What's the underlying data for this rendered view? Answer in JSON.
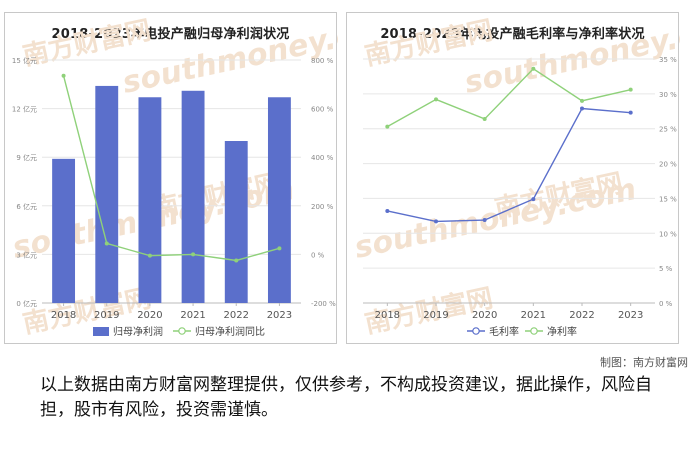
{
  "credit": "制图：南方财富网",
  "disclaimer": "以上数据由南方财富网整理提供，仅供参考，不构成投资建议，据此操作，风险自担，股市有风险，投资需谨慎。",
  "watermark": {
    "cn": "南方财富网",
    "en": "southmoney.com"
  },
  "colors": {
    "bar": "#5b6fcb",
    "growth_line": "#8fd17a",
    "gross_line": "#5b6fcb",
    "net_line": "#8fd17a"
  },
  "chart_data": [
    {
      "type": "bar",
      "title": "2018-2023年电投产融归母净利润状况",
      "categories": [
        "2018",
        "2019",
        "2020",
        "2021",
        "2022",
        "2023"
      ],
      "y_ticks": [
        "0 亿元",
        "3 亿元",
        "6 亿元",
        "9 亿元",
        "12 亿元",
        "15 亿元"
      ],
      "y2_ticks": [
        "-200 %",
        "0 %",
        "200 %",
        "400 %",
        "600 %",
        "800 %"
      ],
      "ylim": [
        0,
        15
      ],
      "y2lim": [
        -200,
        800
      ],
      "series": [
        {
          "name": "归母净利润",
          "type": "bar",
          "axis": "left",
          "values": [
            8.9,
            13.4,
            12.7,
            13.1,
            10.0,
            12.7
          ]
        },
        {
          "name": "归母净利润同比",
          "type": "line",
          "axis": "right",
          "values": [
            735,
            45,
            -5,
            0,
            -25,
            25
          ]
        }
      ],
      "legend": "bottom"
    },
    {
      "type": "line",
      "title": "2018-2023年电投产融毛利率与净利率状况",
      "categories": [
        "2018",
        "2019",
        "2020",
        "2021",
        "2022",
        "2023"
      ],
      "y_ticks": [
        "0 %",
        "5 %",
        "10 %",
        "15 %",
        "20 %",
        "25 %",
        "30 %",
        "35 %"
      ],
      "ylim": [
        0,
        35
      ],
      "series": [
        {
          "name": "毛利率",
          "values": [
            13.2,
            11.7,
            11.9,
            14.9,
            27.9,
            27.3
          ]
        },
        {
          "name": "净利率",
          "values": [
            25.3,
            29.2,
            26.4,
            33.6,
            29.0,
            30.6
          ]
        }
      ],
      "legend": "bottom"
    }
  ]
}
